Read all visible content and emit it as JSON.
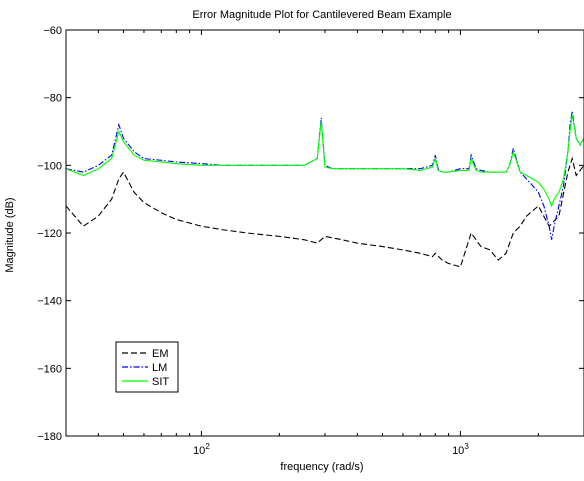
{
  "chart_data": {
    "type": "line",
    "title": "Error Magnitude Plot for Cantilevered Beam Example",
    "xlabel": "frequency (rad/s)",
    "ylabel": "Magnitude (dB)",
    "x_scale": "log",
    "xlim": [
      30,
      3000
    ],
    "ylim": [
      -180,
      -60
    ],
    "x_ticks": [
      {
        "value": 100,
        "base": "10",
        "exp": "2"
      },
      {
        "value": 1000,
        "base": "10",
        "exp": "3"
      }
    ],
    "y_ticks": [
      -180,
      -160,
      -140,
      -120,
      -100,
      -80,
      -60
    ],
    "y_tick_labels": [
      "−180",
      "−160",
      "−140",
      "−120",
      "−100",
      "−80",
      "−60"
    ],
    "grid": false,
    "legend": "bottom-left",
    "series": [
      {
        "name": "EM",
        "color": "#000000",
        "style": "dashed",
        "x": [
          30,
          35,
          40,
          45,
          48,
          50,
          55,
          60,
          70,
          80,
          100,
          120,
          150,
          200,
          250,
          280,
          300,
          350,
          400,
          500,
          600,
          700,
          780,
          800,
          850,
          900,
          1000,
          1100,
          1200,
          1300,
          1400,
          1500,
          1600,
          1700,
          1800,
          2000,
          2200,
          2400,
          2600,
          2700,
          2800,
          3000
        ],
        "y": [
          -112,
          -118,
          -115,
          -110,
          -104,
          -102,
          -108,
          -111,
          -114,
          -116,
          -118,
          -119,
          -120,
          -121,
          -122,
          -123,
          -121,
          -122,
          -123,
          -124,
          -125,
          -126,
          -127,
          -126,
          -128,
          -129,
          -130,
          -120,
          -124,
          -125,
          -128,
          -126,
          -120,
          -118,
          -115,
          -112,
          -118,
          -115,
          -102,
          -98,
          -103,
          -100
        ]
      },
      {
        "name": "LM",
        "color": "#0000ff",
        "style": "dashdot",
        "x": [
          30,
          35,
          40,
          45,
          48,
          50,
          55,
          60,
          70,
          80,
          100,
          120,
          150,
          200,
          250,
          280,
          290,
          300,
          320,
          350,
          400,
          500,
          600,
          700,
          780,
          800,
          820,
          850,
          900,
          1000,
          1080,
          1100,
          1150,
          1200,
          1300,
          1400,
          1500,
          1550,
          1600,
          1700,
          1800,
          1900,
          2000,
          2100,
          2200,
          2250,
          2300,
          2400,
          2500,
          2600,
          2650,
          2700,
          2800,
          2900,
          3000
        ],
        "y": [
          -101,
          -102,
          -100,
          -97,
          -88,
          -92,
          -96,
          -98,
          -98.5,
          -99,
          -99.5,
          -100,
          -100,
          -100,
          -100,
          -98,
          -86,
          -100,
          -101,
          -101,
          -101,
          -101,
          -101,
          -101,
          -100,
          -97,
          -101,
          -102,
          -102,
          -101,
          -101,
          -97,
          -101,
          -101.5,
          -102,
          -102,
          -102,
          -100,
          -95,
          -102,
          -104,
          -106,
          -108,
          -112,
          -118,
          -122,
          -118,
          -112,
          -106,
          -96,
          -88,
          -84,
          -92,
          -94,
          -92
        ]
      },
      {
        "name": "SIT",
        "color": "#00ff00",
        "style": "solid",
        "x": [
          30,
          35,
          40,
          45,
          48,
          50,
          55,
          60,
          70,
          80,
          100,
          120,
          150,
          200,
          250,
          280,
          290,
          300,
          320,
          350,
          400,
          500,
          600,
          700,
          780,
          800,
          820,
          850,
          900,
          1000,
          1080,
          1100,
          1150,
          1200,
          1300,
          1400,
          1500,
          1550,
          1600,
          1700,
          1800,
          1900,
          2000,
          2100,
          2200,
          2250,
          2300,
          2400,
          2500,
          2600,
          2650,
          2700,
          2800,
          2900,
          3000
        ],
        "y": [
          -101,
          -103,
          -101,
          -98,
          -90,
          -93,
          -97,
          -98.5,
          -99,
          -99.5,
          -100,
          -100,
          -100,
          -100,
          -100,
          -98,
          -87,
          -100.5,
          -101,
          -101,
          -101,
          -101,
          -101,
          -101.5,
          -100.5,
          -98,
          -101.5,
          -102,
          -102,
          -101.5,
          -101.5,
          -98,
          -101.5,
          -102,
          -102,
          -102,
          -102,
          -100,
          -96,
          -102,
          -103,
          -104,
          -105,
          -107,
          -110,
          -112,
          -110,
          -108,
          -104,
          -96,
          -90,
          -85,
          -92,
          -94,
          -92
        ]
      }
    ]
  }
}
